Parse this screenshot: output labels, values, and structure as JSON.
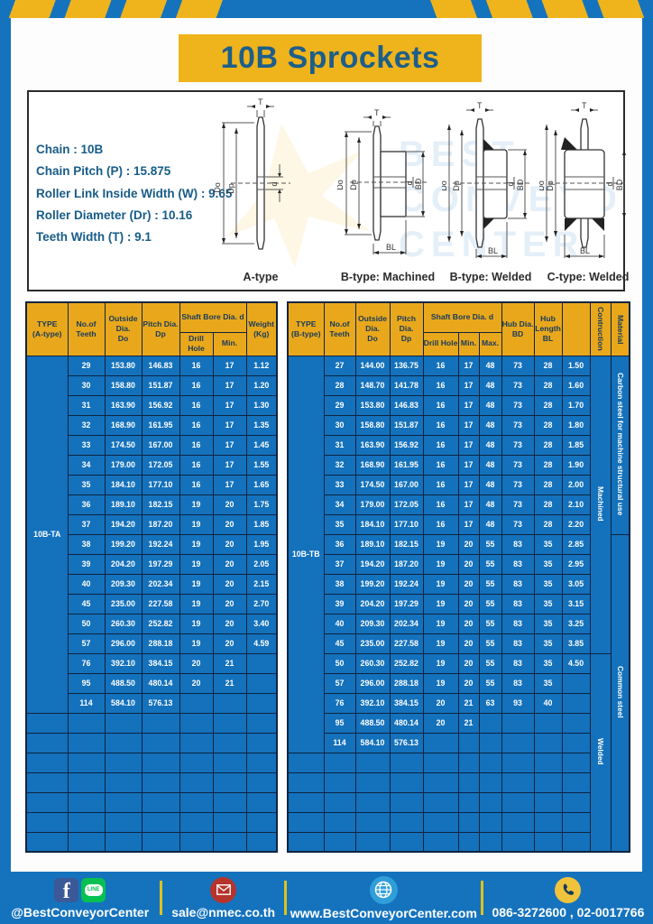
{
  "title": "10B Sprockets",
  "specs": {
    "lines": [
      "Chain : 10B",
      "Chain Pitch (P) : 15.875",
      "Roller Link Inside Width (W) : 9.65",
      "Roller Diameter (Dr) : 10.16",
      "Teeth Width (T) : 9.1"
    ]
  },
  "dims": {
    "t": "T",
    "do_": "Do",
    "dp": "Dp",
    "d": "d",
    "bl": "BL",
    "bd": "BD"
  },
  "diagrams": {
    "captions": [
      "A-type",
      "B-type: Machined",
      "B-type: Welded",
      "C-type: Welded"
    ]
  },
  "watermark": {
    "lines": [
      "BEST",
      "CONVEYOR",
      "CENTER"
    ]
  },
  "table_a": {
    "headers": {
      "type": "TYPE\n(A-type)",
      "teeth": "No.of\nTeeth",
      "outside": "Outside\nDia.\nDo",
      "pitch": "Pitch Dia.\nDp",
      "shaft_bore": "Shaft Bore Dia. d",
      "drill": "Drill Hole",
      "min": "Min.",
      "weight": "Weight\n(Kg)"
    },
    "type_label": "10B-TA",
    "rows": [
      [
        "29",
        "153.80",
        "146.83",
        "16",
        "17",
        "1.12"
      ],
      [
        "30",
        "158.80",
        "151.87",
        "16",
        "17",
        "1.20"
      ],
      [
        "31",
        "163.90",
        "156.92",
        "16",
        "17",
        "1.30"
      ],
      [
        "32",
        "168.90",
        "161.95",
        "16",
        "17",
        "1.35"
      ],
      [
        "33",
        "174.50",
        "167.00",
        "16",
        "17",
        "1.45"
      ],
      [
        "34",
        "179.00",
        "172.05",
        "16",
        "17",
        "1.55"
      ],
      [
        "35",
        "184.10",
        "177.10",
        "16",
        "17",
        "1.65"
      ],
      [
        "36",
        "189.10",
        "182.15",
        "19",
        "20",
        "1.75"
      ],
      [
        "37",
        "194.20",
        "187.20",
        "19",
        "20",
        "1.85"
      ],
      [
        "38",
        "199.20",
        "192.24",
        "19",
        "20",
        "1.95"
      ],
      [
        "39",
        "204.20",
        "197.29",
        "19",
        "20",
        "2.05"
      ],
      [
        "40",
        "209.30",
        "202.34",
        "19",
        "20",
        "2.15"
      ],
      [
        "45",
        "235.00",
        "227.58",
        "19",
        "20",
        "2.70"
      ],
      [
        "50",
        "260.30",
        "252.82",
        "19",
        "20",
        "3.40"
      ],
      [
        "57",
        "296.00",
        "288.18",
        "19",
        "20",
        "4.59"
      ],
      [
        "76",
        "392.10",
        "384.15",
        "20",
        "21",
        ""
      ],
      [
        "95",
        "488.50",
        "480.14",
        "20",
        "21",
        ""
      ],
      [
        "114",
        "584.10",
        "576.13",
        "",
        "",
        ""
      ]
    ],
    "empty_rows": 7
  },
  "table_b": {
    "headers": {
      "type": "TYPE\n(B-type)",
      "teeth": "No.of\nTeeth",
      "outside": "Outside\nDia.\nDo",
      "pitch": "Pitch Dia.\nDp",
      "shaft_bore": "Shaft Bore Dia. d",
      "drill": "Drill Hole",
      "min": "Min.",
      "max": "Max.",
      "hub_dia": "Hub Dia.\nBD",
      "hub_len": "Hub\nLength\nBL",
      "construction": "Contruction",
      "material": "Material"
    },
    "type_label": "10B-TB",
    "rows": [
      [
        "27",
        "144.00",
        "136.75",
        "16",
        "17",
        "48",
        "73",
        "28",
        "1.50"
      ],
      [
        "28",
        "148.70",
        "141.78",
        "16",
        "17",
        "48",
        "73",
        "28",
        "1.60"
      ],
      [
        "29",
        "153.80",
        "146.83",
        "16",
        "17",
        "48",
        "73",
        "28",
        "1.70"
      ],
      [
        "30",
        "158.80",
        "151.87",
        "16",
        "17",
        "48",
        "73",
        "28",
        "1.80"
      ],
      [
        "31",
        "163.90",
        "156.92",
        "16",
        "17",
        "48",
        "73",
        "28",
        "1.85"
      ],
      [
        "32",
        "168.90",
        "161.95",
        "16",
        "17",
        "48",
        "73",
        "28",
        "1.90"
      ],
      [
        "33",
        "174.50",
        "167.00",
        "16",
        "17",
        "48",
        "73",
        "28",
        "2.00"
      ],
      [
        "34",
        "179.00",
        "172.05",
        "16",
        "17",
        "48",
        "73",
        "28",
        "2.10"
      ],
      [
        "35",
        "184.10",
        "177.10",
        "16",
        "17",
        "48",
        "73",
        "28",
        "2.20"
      ],
      [
        "36",
        "189.10",
        "182.15",
        "19",
        "20",
        "55",
        "83",
        "35",
        "2.85"
      ],
      [
        "37",
        "194.20",
        "187.20",
        "19",
        "20",
        "55",
        "83",
        "35",
        "2.95"
      ],
      [
        "38",
        "199.20",
        "192.24",
        "19",
        "20",
        "55",
        "83",
        "35",
        "3.05"
      ],
      [
        "39",
        "204.20",
        "197.29",
        "19",
        "20",
        "55",
        "83",
        "35",
        "3.15"
      ],
      [
        "40",
        "209.30",
        "202.34",
        "19",
        "20",
        "55",
        "83",
        "35",
        "3.25"
      ],
      [
        "45",
        "235.00",
        "227.58",
        "19",
        "20",
        "55",
        "83",
        "35",
        "3.85"
      ],
      [
        "50",
        "260.30",
        "252.82",
        "19",
        "20",
        "55",
        "83",
        "35",
        "4.50"
      ],
      [
        "57",
        "296.00",
        "288.18",
        "19",
        "20",
        "55",
        "83",
        "35",
        ""
      ],
      [
        "76",
        "392.10",
        "384.15",
        "20",
        "21",
        "63",
        "93",
        "40",
        ""
      ],
      [
        "95",
        "488.50",
        "480.14",
        "20",
        "21",
        "",
        "",
        "",
        ""
      ],
      [
        "114",
        "584.10",
        "576.13",
        "",
        "",
        "",
        "",
        "",
        ""
      ]
    ],
    "empty_rows": 5,
    "construction": [
      {
        "label": "Machined",
        "span": 15
      },
      {
        "label": "Welded",
        "span": 10
      }
    ],
    "material": [
      {
        "label": "Carbon steel for  machine structural use",
        "span": 9
      },
      {
        "label": "Common steel",
        "span": 16
      }
    ]
  },
  "footer": {
    "line_text": "LINE",
    "items": [
      {
        "icon": "facebook-line-icons",
        "label": "@BestConveyorCenter"
      },
      {
        "icon": "mail-icon",
        "label": "sale@nmec.co.th"
      },
      {
        "icon": "globe-icon",
        "label": "www.BestConveyorCenter.com"
      },
      {
        "icon": "phone-icon",
        "label": "086-3272600 , 02-0017766"
      }
    ]
  },
  "colors": {
    "frame_blue": "#1573BE",
    "cell_blue": "#1471BC",
    "banner_yellow": "#EFB41B",
    "header_yellow": "#E9A81B",
    "border_navy": "#0D2440",
    "dark_text_blue": "#175C88"
  }
}
